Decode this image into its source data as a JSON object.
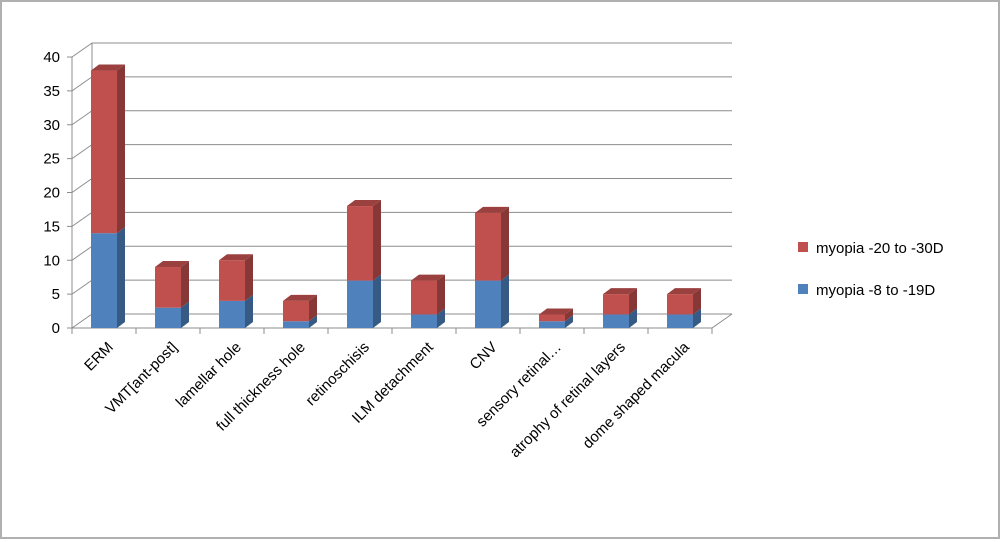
{
  "chart_data": {
    "type": "bar",
    "stacked": true,
    "three_d": true,
    "title": "",
    "xlabel": "",
    "ylabel": "",
    "ylim": [
      0,
      40
    ],
    "yticks": [
      0,
      5,
      10,
      15,
      20,
      25,
      30,
      35,
      40
    ],
    "grid": true,
    "legend_position": "right",
    "categories": [
      "ERM",
      "VMT[ant-post]",
      "lamellar hole",
      "full thickness hole",
      "retinoschisis",
      "ILM detachment",
      "CNV",
      "sensory retinal…",
      "atrophy of retinal layers",
      "dome shaped macula"
    ],
    "series": [
      {
        "name": "myopia -8 to -19D",
        "color": "#4f81bd",
        "values": [
          14,
          3,
          4,
          1,
          7,
          2,
          7,
          1,
          2,
          2
        ]
      },
      {
        "name": "myopia -20 to -30D",
        "color": "#c0504d",
        "values": [
          24,
          6,
          6,
          3,
          11,
          5,
          10,
          1,
          3,
          3
        ]
      }
    ]
  }
}
